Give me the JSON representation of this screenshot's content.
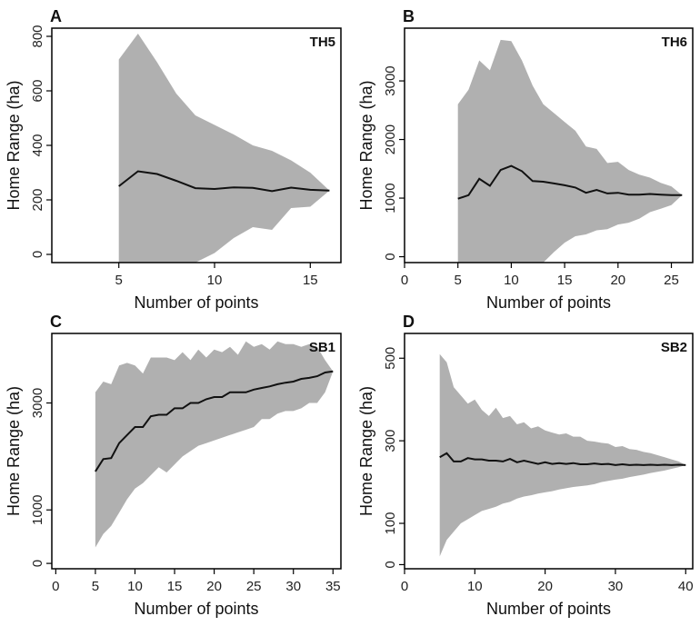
{
  "figure": {
    "xlabel": "Number of points",
    "ylabel": "Home Range (ha)"
  },
  "colors": {
    "band": "#b0b0b0",
    "line": "#111111",
    "frame": "#000000"
  },
  "chart_data": [
    {
      "type": "area",
      "panel_letter": "A",
      "panel_name": "TH5",
      "xlabel": "Number of points",
      "ylabel": "Home Range (ha)",
      "xlim": [
        1.5,
        16.6
      ],
      "ylim": [
        -30,
        830
      ],
      "xticks": [
        5,
        10,
        15
      ],
      "yticks": [
        0,
        200,
        400,
        600,
        800
      ],
      "x": [
        5,
        6,
        7,
        8,
        9,
        10,
        11,
        12,
        13,
        14,
        15,
        16
      ],
      "series": [
        {
          "values": [
            250,
            305,
            295,
            270,
            243,
            240,
            246,
            244,
            232,
            245,
            237,
            234
          ]
        },
        {
          "values": [
            715,
            810,
            705,
            590,
            510,
            475,
            440,
            400,
            380,
            345,
            300,
            234
          ]
        },
        {
          "values": [
            -30,
            -30,
            -30,
            -30,
            -30,
            5,
            60,
            100,
            90,
            170,
            175,
            234
          ]
        }
      ]
    },
    {
      "type": "area",
      "panel_letter": "B",
      "panel_name": "TH6",
      "xlabel": "Number of points",
      "ylabel": "Home Range (ha)",
      "xlim": [
        0,
        27
      ],
      "ylim": [
        -100,
        3900
      ],
      "xticks": [
        0,
        5,
        10,
        15,
        20,
        25
      ],
      "yticks": [
        0,
        1000,
        2000,
        3000
      ],
      "x": [
        5,
        6,
        7,
        8,
        9,
        10,
        11,
        12,
        13,
        14,
        15,
        16,
        17,
        18,
        19,
        20,
        21,
        22,
        23,
        24,
        25,
        26
      ],
      "series": [
        {
          "values": [
            990,
            1050,
            1330,
            1210,
            1480,
            1550,
            1460,
            1290,
            1280,
            1250,
            1220,
            1180,
            1090,
            1140,
            1080,
            1090,
            1060,
            1060,
            1070,
            1060,
            1050,
            1050
          ]
        },
        {
          "values": [
            2600,
            2850,
            3350,
            3180,
            3700,
            3680,
            3350,
            2920,
            2600,
            2450,
            2300,
            2150,
            1880,
            1840,
            1600,
            1620,
            1480,
            1400,
            1350,
            1260,
            1200,
            1050
          ]
        },
        {
          "values": [
            -100,
            -100,
            -100,
            -100,
            -100,
            -100,
            -100,
            -100,
            -100,
            80,
            240,
            350,
            380,
            450,
            470,
            550,
            580,
            650,
            760,
            820,
            880,
            1050
          ]
        }
      ]
    },
    {
      "type": "area",
      "panel_letter": "C",
      "panel_name": "SB1",
      "xlabel": "Number of points",
      "ylabel": "Home Range (ha)",
      "xlim": [
        -0.5,
        36
      ],
      "ylim": [
        -100,
        4300
      ],
      "xticks": [
        0,
        5,
        10,
        15,
        20,
        25,
        30,
        35
      ],
      "yticks": [
        0,
        1000,
        3000
      ],
      "x": [
        5,
        6,
        7,
        8,
        9,
        10,
        11,
        12,
        13,
        14,
        15,
        16,
        17,
        18,
        19,
        20,
        21,
        22,
        23,
        24,
        25,
        26,
        27,
        28,
        29,
        30,
        31,
        32,
        33,
        34,
        35
      ],
      "series": [
        {
          "values": [
            1720,
            1950,
            1970,
            2250,
            2400,
            2550,
            2550,
            2750,
            2780,
            2780,
            2900,
            2900,
            3000,
            3000,
            3070,
            3110,
            3110,
            3200,
            3200,
            3200,
            3250,
            3280,
            3310,
            3350,
            3380,
            3400,
            3450,
            3470,
            3500,
            3570,
            3590
          ]
        },
        {
          "values": [
            3200,
            3400,
            3350,
            3700,
            3750,
            3700,
            3550,
            3850,
            3850,
            3850,
            3800,
            3950,
            3800,
            4000,
            3850,
            4000,
            3950,
            4050,
            3900,
            4150,
            4050,
            4100,
            4000,
            4150,
            4100,
            4100,
            4050,
            4100,
            4050,
            3800,
            3590
          ]
        },
        {
          "values": [
            300,
            550,
            700,
            950,
            1200,
            1400,
            1500,
            1650,
            1800,
            1700,
            1850,
            2000,
            2100,
            2200,
            2250,
            2300,
            2350,
            2400,
            2450,
            2500,
            2550,
            2700,
            2700,
            2800,
            2850,
            2850,
            2900,
            3000,
            3000,
            3200,
            3590
          ]
        }
      ]
    },
    {
      "type": "area",
      "panel_letter": "D",
      "panel_name": "SB2",
      "xlabel": "Number of points",
      "ylabel": "Home Range (ha)",
      "xlim": [
        0,
        41
      ],
      "ylim": [
        -10,
        560
      ],
      "xticks": [
        0,
        10,
        20,
        30,
        40
      ],
      "yticks": [
        0,
        100,
        300,
        500
      ],
      "x": [
        5,
        6,
        7,
        8,
        9,
        10,
        11,
        12,
        13,
        14,
        15,
        16,
        17,
        18,
        19,
        20,
        21,
        22,
        23,
        24,
        25,
        26,
        27,
        28,
        29,
        30,
        31,
        32,
        33,
        34,
        35,
        36,
        37,
        38,
        39,
        40
      ],
      "series": [
        {
          "values": [
            260,
            270,
            250,
            250,
            258,
            255,
            255,
            252,
            252,
            250,
            256,
            248,
            252,
            248,
            244,
            248,
            244,
            246,
            244,
            246,
            243,
            243,
            245,
            243,
            244,
            241,
            243,
            241,
            242,
            241,
            242,
            241,
            242,
            241,
            242,
            241
          ]
        },
        {
          "values": [
            510,
            490,
            430,
            410,
            390,
            400,
            375,
            360,
            380,
            355,
            360,
            340,
            345,
            330,
            335,
            325,
            320,
            315,
            318,
            310,
            310,
            300,
            298,
            295,
            293,
            285,
            287,
            280,
            278,
            273,
            270,
            265,
            260,
            255,
            250,
            241
          ]
        },
        {
          "values": [
            20,
            60,
            80,
            100,
            110,
            120,
            130,
            135,
            140,
            148,
            152,
            160,
            165,
            168,
            172,
            175,
            178,
            182,
            185,
            188,
            190,
            192,
            195,
            200,
            203,
            206,
            208,
            212,
            215,
            218,
            222,
            225,
            228,
            232,
            236,
            241
          ]
        }
      ]
    }
  ]
}
